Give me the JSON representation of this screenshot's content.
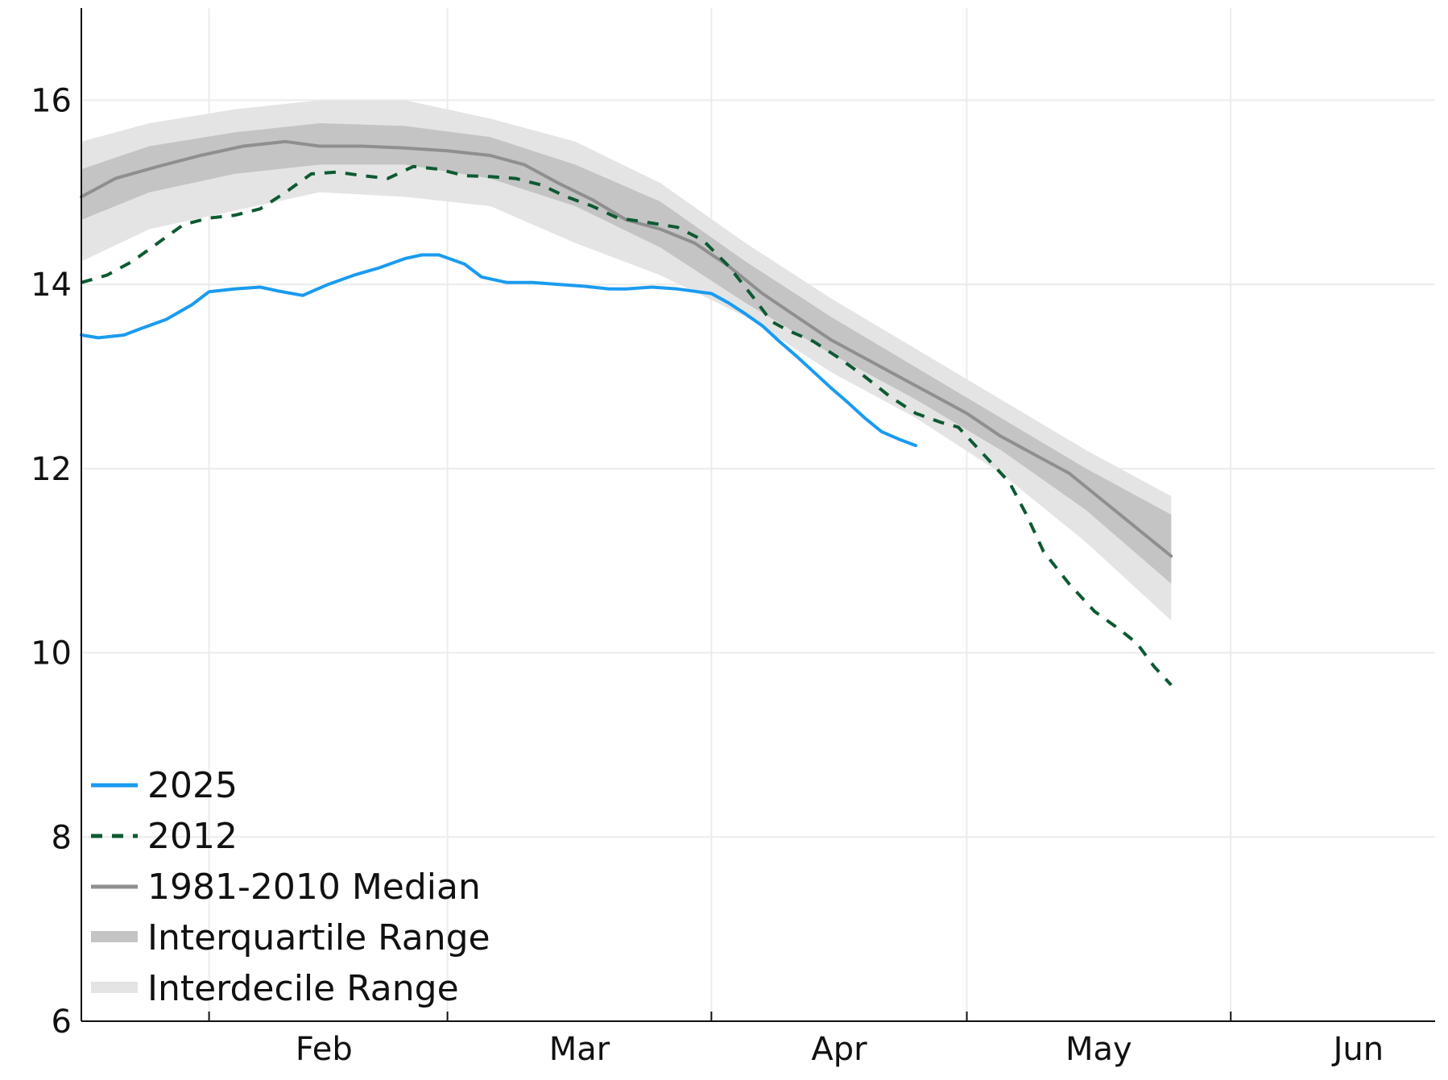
{
  "chart_data": {
    "type": "line",
    "title": "",
    "xlabel": "",
    "ylabel": "",
    "x_units": "day of year",
    "xlim": [
      17,
      176
    ],
    "ylim": [
      6,
      17
    ],
    "yticks": [
      6,
      8,
      10,
      12,
      14,
      16
    ],
    "month_boundaries": [
      32,
      60,
      91,
      121,
      152
    ],
    "month_labels": [
      {
        "label": "Feb",
        "x": 45.5
      },
      {
        "label": "Mar",
        "x": 75.5
      },
      {
        "label": "Apr",
        "x": 106
      },
      {
        "label": "May",
        "x": 136.5
      },
      {
        "label": "Jun",
        "x": 167
      }
    ],
    "grid": true,
    "legend_position": "bottom-left",
    "colors": {
      "series_2025": "#1a9bf0",
      "series_2012": "#0d5a32",
      "median": "#8f8f8f",
      "interquartile": "#c4c4c4",
      "interdecile": "#e4e4e4",
      "grid": "#ececec",
      "axis": "#111111"
    },
    "series": [
      {
        "name": "2025",
        "style": "solid",
        "points": [
          [
            17,
            13.45
          ],
          [
            19,
            13.42
          ],
          [
            22,
            13.45
          ],
          [
            24,
            13.52
          ],
          [
            27,
            13.62
          ],
          [
            30,
            13.78
          ],
          [
            32,
            13.92
          ],
          [
            35,
            13.95
          ],
          [
            38,
            13.97
          ],
          [
            40,
            13.93
          ],
          [
            43,
            13.88
          ],
          [
            46,
            14.0
          ],
          [
            49,
            14.1
          ],
          [
            52,
            14.18
          ],
          [
            55,
            14.28
          ],
          [
            57,
            14.32
          ],
          [
            59,
            14.32
          ],
          [
            62,
            14.22
          ],
          [
            64,
            14.08
          ],
          [
            67,
            14.02
          ],
          [
            70,
            14.02
          ],
          [
            73,
            14.0
          ],
          [
            76,
            13.98
          ],
          [
            79,
            13.95
          ],
          [
            81,
            13.95
          ],
          [
            84,
            13.97
          ],
          [
            87,
            13.95
          ],
          [
            91,
            13.9
          ],
          [
            93,
            13.8
          ],
          [
            95,
            13.68
          ],
          [
            97,
            13.55
          ],
          [
            99,
            13.38
          ],
          [
            101,
            13.22
          ],
          [
            103,
            13.05
          ],
          [
            105,
            12.88
          ],
          [
            107,
            12.72
          ],
          [
            109,
            12.55
          ],
          [
            111,
            12.4
          ],
          [
            113,
            12.32
          ],
          [
            115,
            12.25
          ]
        ]
      },
      {
        "name": "2012",
        "style": "dashed",
        "points": [
          [
            17,
            14.02
          ],
          [
            20,
            14.1
          ],
          [
            23,
            14.25
          ],
          [
            26,
            14.45
          ],
          [
            29,
            14.65
          ],
          [
            32,
            14.72
          ],
          [
            35,
            14.75
          ],
          [
            38,
            14.82
          ],
          [
            41,
            15.0
          ],
          [
            44,
            15.2
          ],
          [
            47,
            15.22
          ],
          [
            50,
            15.18
          ],
          [
            53,
            15.15
          ],
          [
            56,
            15.28
          ],
          [
            59,
            15.25
          ],
          [
            62,
            15.18
          ],
          [
            65,
            15.17
          ],
          [
            68,
            15.15
          ],
          [
            71,
            15.08
          ],
          [
            74,
            14.95
          ],
          [
            77,
            14.85
          ],
          [
            80,
            14.72
          ],
          [
            83,
            14.68
          ],
          [
            87,
            14.62
          ],
          [
            90,
            14.48
          ],
          [
            93,
            14.2
          ],
          [
            96,
            13.85
          ],
          [
            98,
            13.6
          ],
          [
            100,
            13.5
          ],
          [
            103,
            13.38
          ],
          [
            106,
            13.2
          ],
          [
            109,
            13.0
          ],
          [
            112,
            12.78
          ],
          [
            115,
            12.6
          ],
          [
            118,
            12.5
          ],
          [
            120,
            12.45
          ],
          [
            123,
            12.15
          ],
          [
            126,
            11.85
          ],
          [
            128,
            11.5
          ],
          [
            130,
            11.1
          ],
          [
            133,
            10.75
          ],
          [
            136,
            10.45
          ],
          [
            139,
            10.25
          ],
          [
            141,
            10.1
          ],
          [
            143,
            9.85
          ],
          [
            145,
            9.65
          ]
        ]
      },
      {
        "name": "1981-2010 Median",
        "style": "solid",
        "points": [
          [
            17,
            14.95
          ],
          [
            21,
            15.15
          ],
          [
            26,
            15.28
          ],
          [
            31,
            15.4
          ],
          [
            36,
            15.5
          ],
          [
            41,
            15.55
          ],
          [
            45,
            15.5
          ],
          [
            50,
            15.5
          ],
          [
            55,
            15.48
          ],
          [
            60,
            15.45
          ],
          [
            65,
            15.4
          ],
          [
            69,
            15.3
          ],
          [
            73,
            15.1
          ],
          [
            77,
            14.92
          ],
          [
            81,
            14.7
          ],
          [
            85,
            14.6
          ],
          [
            89,
            14.45
          ],
          [
            93,
            14.2
          ],
          [
            97,
            13.9
          ],
          [
            101,
            13.65
          ],
          [
            105,
            13.4
          ],
          [
            109,
            13.2
          ],
          [
            113,
            13.0
          ],
          [
            117,
            12.8
          ],
          [
            121,
            12.6
          ],
          [
            125,
            12.35
          ],
          [
            129,
            12.15
          ],
          [
            133,
            11.95
          ],
          [
            137,
            11.65
          ],
          [
            141,
            11.35
          ],
          [
            145,
            11.05
          ]
        ]
      }
    ],
    "bands": [
      {
        "name": "Interdecile Range",
        "x": [
          17,
          25,
          35,
          45,
          55,
          65,
          75,
          85,
          95,
          105,
          115,
          125,
          135,
          145
        ],
        "upper": [
          15.55,
          15.75,
          15.9,
          16.0,
          16.0,
          15.8,
          15.55,
          15.1,
          14.45,
          13.85,
          13.3,
          12.75,
          12.2,
          11.7
        ],
        "lower": [
          14.25,
          14.6,
          14.8,
          15.0,
          14.95,
          14.85,
          14.45,
          14.1,
          13.65,
          13.05,
          12.55,
          11.95,
          11.2,
          10.35
        ]
      },
      {
        "name": "Interquartile Range",
        "x": [
          17,
          25,
          35,
          45,
          55,
          65,
          75,
          85,
          95,
          105,
          115,
          125,
          135,
          145
        ],
        "upper": [
          15.25,
          15.5,
          15.65,
          15.75,
          15.72,
          15.6,
          15.3,
          14.9,
          14.25,
          13.65,
          13.1,
          12.55,
          12.0,
          11.5
        ],
        "lower": [
          14.7,
          15.0,
          15.2,
          15.3,
          15.3,
          15.15,
          14.85,
          14.4,
          13.8,
          13.25,
          12.75,
          12.2,
          11.55,
          10.75
        ]
      }
    ],
    "legend": [
      {
        "label": "2025",
        "kind": "line",
        "color": "#1a9bf0"
      },
      {
        "label": "2012",
        "kind": "dashed",
        "color": "#0d5a32"
      },
      {
        "label": "1981-2010 Median",
        "kind": "line",
        "color": "#8f8f8f"
      },
      {
        "label": "Interquartile Range",
        "kind": "band",
        "color": "#c4c4c4"
      },
      {
        "label": "Interdecile Range",
        "kind": "band",
        "color": "#e4e4e4"
      }
    ]
  }
}
